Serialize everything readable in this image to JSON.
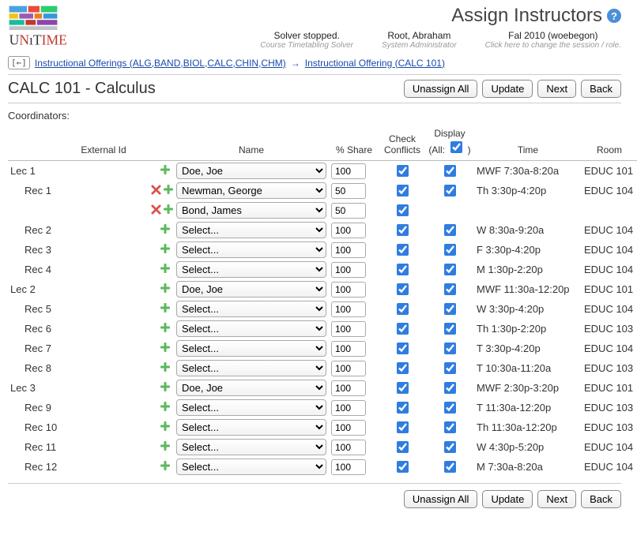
{
  "page_title": "Assign Instructors",
  "status": {
    "solver": {
      "main": "Solver stopped.",
      "sub": "Course Timetabling Solver"
    },
    "user": {
      "main": "Root, Abraham",
      "sub": "System Administrator"
    },
    "session": {
      "main": "Fal 2010 (woebegon)",
      "sub": "Click here to change the session / role."
    }
  },
  "breadcrumb": {
    "back_symbol": "[←]",
    "link1": "Instructional Offerings (ALG,BAND,BIOL,CALC,CHIN,CHM)",
    "arrow": "→",
    "link2": "Instructional Offering (CALC 101)"
  },
  "course_title": "CALC 101 - Calculus",
  "buttons": {
    "unassign": "Unassign All",
    "update": "Update",
    "next": "Next",
    "back": "Back"
  },
  "coord_label": "Coordinators:",
  "columns": {
    "ext": "External Id",
    "name": "Name",
    "share": "% Share",
    "check": "Check Conflicts",
    "display_line1": "Display",
    "display_all": "(All:",
    "display_close": ")",
    "time": "Time",
    "room": "Room"
  },
  "select_placeholder": "Select...",
  "instructor_options": [
    "Select...",
    "Doe, Joe",
    "Newman, George",
    "Bond, James"
  ],
  "rows": [
    {
      "section": "Lec 1",
      "indent": false,
      "del": false,
      "add": true,
      "name": "Doe, Joe",
      "share": "100",
      "check": true,
      "display": true,
      "time": "MWF 7:30a-8:20a",
      "room": "EDUC 101"
    },
    {
      "section": "Rec 1",
      "indent": true,
      "del": true,
      "add": true,
      "name": "Newman, George",
      "share": "50",
      "check": true,
      "display": true,
      "time": "Th 3:30p-4:20p",
      "room": "EDUC 104"
    },
    {
      "section": "",
      "indent": true,
      "del": true,
      "add": true,
      "name": "Bond, James",
      "share": "50",
      "check": true,
      "display": null,
      "time": "",
      "room": ""
    },
    {
      "section": "Rec 2",
      "indent": true,
      "del": false,
      "add": true,
      "name": "Select...",
      "share": "100",
      "check": true,
      "display": true,
      "time": "W 8:30a-9:20a",
      "room": "EDUC 104"
    },
    {
      "section": "Rec 3",
      "indent": true,
      "del": false,
      "add": true,
      "name": "Select...",
      "share": "100",
      "check": true,
      "display": true,
      "time": "F 3:30p-4:20p",
      "room": "EDUC 104"
    },
    {
      "section": "Rec 4",
      "indent": true,
      "del": false,
      "add": true,
      "name": "Select...",
      "share": "100",
      "check": true,
      "display": true,
      "time": "M 1:30p-2:20p",
      "room": "EDUC 104"
    },
    {
      "section": "Lec 2",
      "indent": false,
      "del": false,
      "add": true,
      "name": "Doe, Joe",
      "share": "100",
      "check": true,
      "display": true,
      "time": "MWF 11:30a-12:20p",
      "room": "EDUC 101"
    },
    {
      "section": "Rec 5",
      "indent": true,
      "del": false,
      "add": true,
      "name": "Select...",
      "share": "100",
      "check": true,
      "display": true,
      "time": "W 3:30p-4:20p",
      "room": "EDUC 104"
    },
    {
      "section": "Rec 6",
      "indent": true,
      "del": false,
      "add": true,
      "name": "Select...",
      "share": "100",
      "check": true,
      "display": true,
      "time": "Th 1:30p-2:20p",
      "room": "EDUC 103"
    },
    {
      "section": "Rec 7",
      "indent": true,
      "del": false,
      "add": true,
      "name": "Select...",
      "share": "100",
      "check": true,
      "display": true,
      "time": "T 3:30p-4:20p",
      "room": "EDUC 104"
    },
    {
      "section": "Rec 8",
      "indent": true,
      "del": false,
      "add": true,
      "name": "Select...",
      "share": "100",
      "check": true,
      "display": true,
      "time": "T 10:30a-11:20a",
      "room": "EDUC 103"
    },
    {
      "section": "Lec 3",
      "indent": false,
      "del": false,
      "add": true,
      "name": "Doe, Joe",
      "share": "100",
      "check": true,
      "display": true,
      "time": "MWF 2:30p-3:20p",
      "room": "EDUC 101"
    },
    {
      "section": "Rec 9",
      "indent": true,
      "del": false,
      "add": true,
      "name": "Select...",
      "share": "100",
      "check": true,
      "display": true,
      "time": "T 11:30a-12:20p",
      "room": "EDUC 103"
    },
    {
      "section": "Rec 10",
      "indent": true,
      "del": false,
      "add": true,
      "name": "Select...",
      "share": "100",
      "check": true,
      "display": true,
      "time": "Th 11:30a-12:20p",
      "room": "EDUC 103"
    },
    {
      "section": "Rec 11",
      "indent": true,
      "del": false,
      "add": true,
      "name": "Select...",
      "share": "100",
      "check": true,
      "display": true,
      "time": "W 4:30p-5:20p",
      "room": "EDUC 104"
    },
    {
      "section": "Rec 12",
      "indent": true,
      "del": false,
      "add": true,
      "name": "Select...",
      "share": "100",
      "check": true,
      "display": true,
      "time": "M 7:30a-8:20a",
      "room": "EDUC 104"
    }
  ]
}
